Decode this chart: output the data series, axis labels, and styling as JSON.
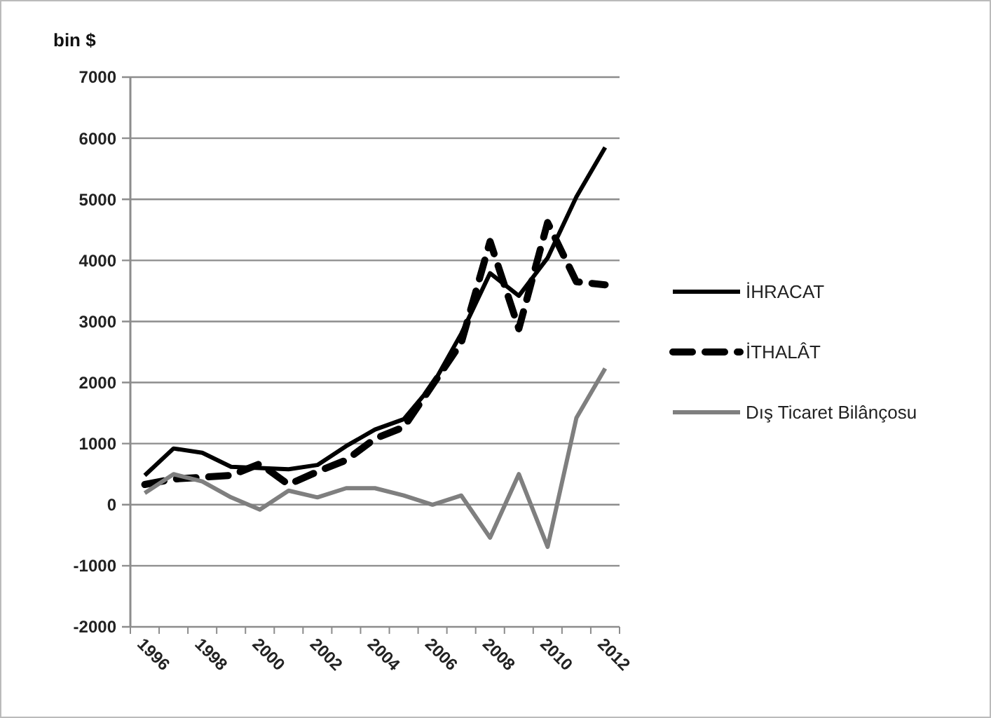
{
  "chart_data": {
    "type": "line",
    "ylabel": "bin $",
    "categories": [
      "1996",
      null,
      "1998",
      null,
      "2000",
      null,
      "2002",
      null,
      "2004",
      null,
      "2006",
      null,
      "2008",
      null,
      "2010",
      null,
      "2012"
    ],
    "ylim": [
      -2000,
      7000
    ],
    "yticks": [
      -2000,
      -1000,
      0,
      1000,
      2000,
      3000,
      4000,
      5000,
      6000,
      7000
    ],
    "grid": "y",
    "legend": "right",
    "series": [
      {
        "name": "İHRACAT",
        "color": "#000000",
        "line_style": "solid",
        "values": [
          480,
          920,
          850,
          620,
          600,
          580,
          650,
          960,
          1230,
          1400,
          1960,
          2800,
          3790,
          3420,
          4040,
          5040,
          5850
        ]
      },
      {
        "name": "İTHALÂT",
        "color": "#000000",
        "line_style": "dashed",
        "values": [
          330,
          420,
          450,
          480,
          670,
          330,
          540,
          730,
          1080,
          1270,
          1960,
          2650,
          4310,
          2880,
          4620,
          3650,
          3600
        ]
      },
      {
        "name": "Dış Ticaret Bilânçosu",
        "color": "#7f7f7f",
        "line_style": "solid",
        "values": [
          190,
          500,
          380,
          120,
          -80,
          230,
          120,
          270,
          270,
          150,
          0,
          150,
          -540,
          500,
          -690,
          1420,
          2230
        ]
      }
    ]
  }
}
